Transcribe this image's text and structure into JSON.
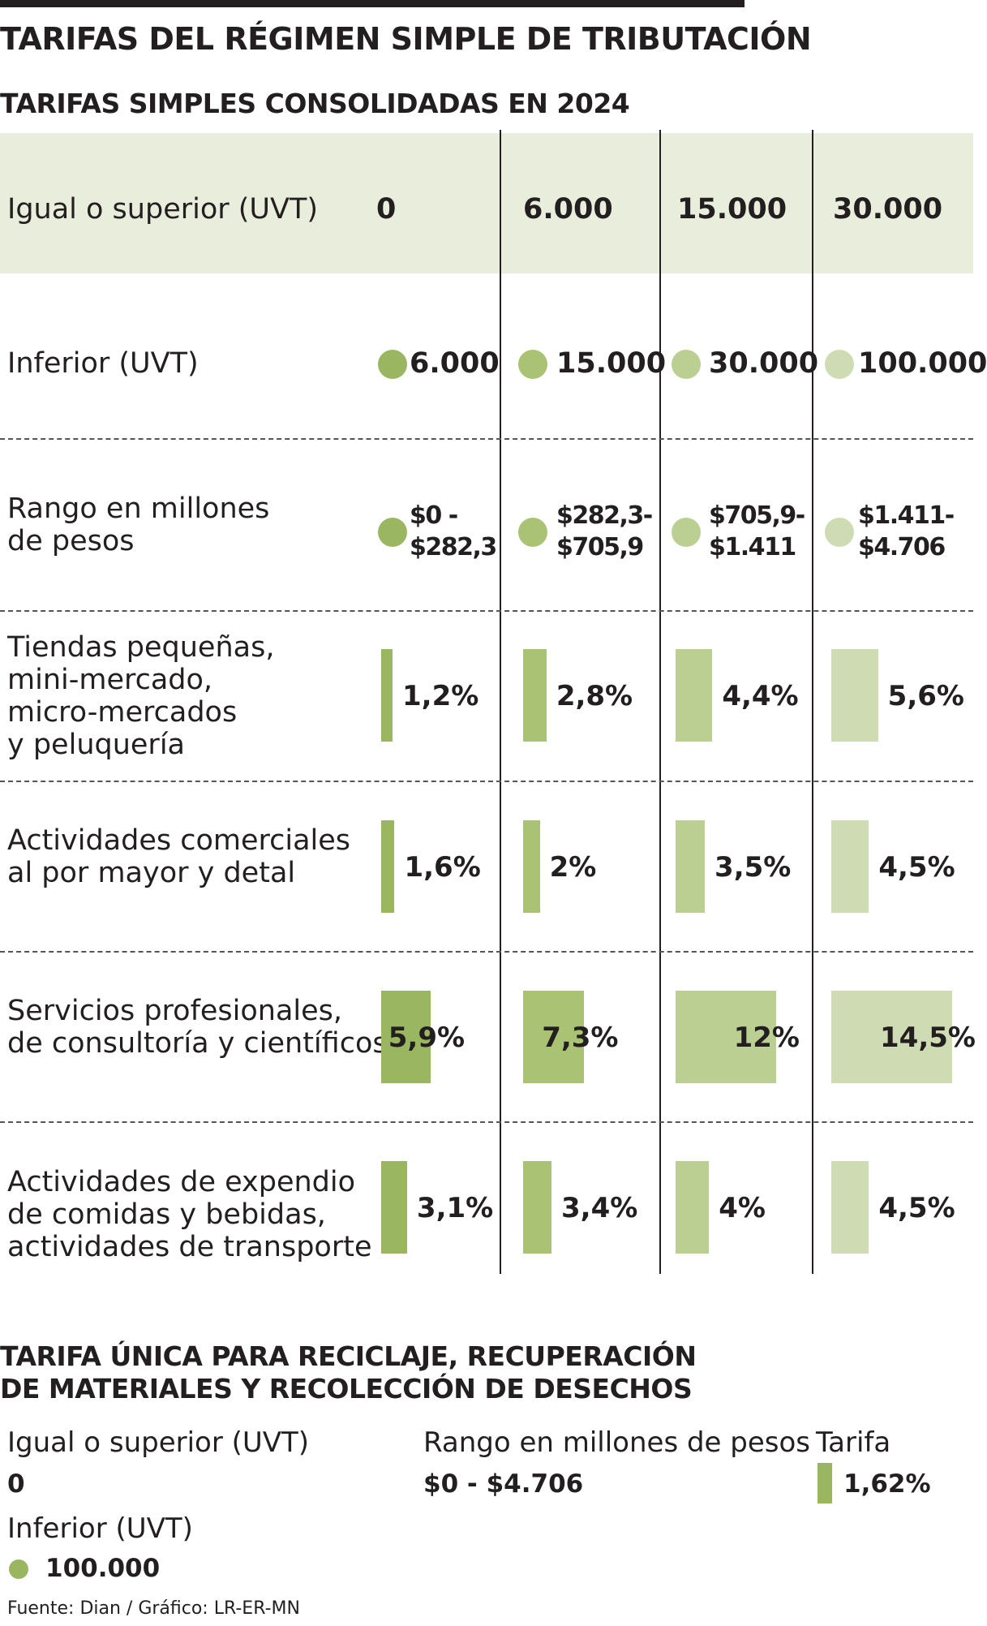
{
  "title": "TARIFAS DEL RÉGIMEN SIMPLE DE TRIBUTACIÓN",
  "subtitle": "TARIFAS SIMPLES CONSOLIDADAS EN 2024",
  "colors": {
    "header_band": "#e9eddb",
    "tier_1": "#9ab661",
    "tier_2": "#a9c274",
    "tier_3": "#bccf93",
    "tier_4": "#cfdcb3"
  },
  "chart_data": {
    "type": "table",
    "header": {
      "label": "Igual o superior (UVT)",
      "values": [
        "0",
        "6.000",
        "15.000",
        "30.000"
      ]
    },
    "inferior": {
      "label": "Inferior (UVT)",
      "values": [
        "6.000",
        "15.000",
        "30.000",
        "100.000"
      ]
    },
    "rango": {
      "label_lines": [
        "Rango en millones",
        "de pesos"
      ],
      "values": [
        [
          "$0 -",
          "$282,3"
        ],
        [
          "$282,3-",
          "$705,9"
        ],
        [
          "$705,9-",
          "$1.411"
        ],
        [
          "$1.411-",
          "$4.706"
        ]
      ]
    },
    "categories": [
      {
        "label_lines": [
          "Tiendas pequeñas,",
          "mini-mercado,",
          "micro-mercados",
          "y peluquería"
        ],
        "values": [
          1.2,
          2.8,
          4.4,
          5.6
        ],
        "labels": [
          "1,2%",
          "2,8%",
          "4,4%",
          "5,6%"
        ]
      },
      {
        "label_lines": [
          "Actividades comerciales",
          "al por mayor y detal"
        ],
        "values": [
          1.6,
          2,
          3.5,
          4.5
        ],
        "labels": [
          "1,6%",
          "2%",
          "3,5%",
          "4,5%"
        ]
      },
      {
        "label_lines": [
          "Servicios profesionales,",
          "de consultoría y científicos"
        ],
        "values": [
          5.9,
          7.3,
          12,
          14.5
        ],
        "labels": [
          "5,9%",
          "7,3%",
          "12%",
          "14,5%"
        ]
      },
      {
        "label_lines": [
          "Actividades de expendio",
          "de comidas y bebidas,",
          "actividades de transporte"
        ],
        "values": [
          3.1,
          3.4,
          4,
          4.5
        ],
        "labels": [
          "3,1%",
          "3,4%",
          "4%",
          "4,5%"
        ]
      }
    ]
  },
  "single_rate": {
    "title_lines": [
      "TARIFA ÚNICA PARA RECICLAJE, RECUPERACIÓN",
      "DE MATERIALES Y RECOLECCIÓN DE DESECHOS"
    ],
    "igual_label": "Igual o superior (UVT)",
    "igual_value": "0",
    "inferior_label": "Inferior (UVT)",
    "inferior_value": "100.000",
    "rango_label": "Rango en millones de pesos",
    "rango_value": "$0 - $4.706",
    "tarifa_label": "Tarifa",
    "tarifa_value": "1,62%",
    "tarifa_rate": 1.62
  },
  "source": "Fuente: Dian / Gráfico: LR-ER-MN"
}
